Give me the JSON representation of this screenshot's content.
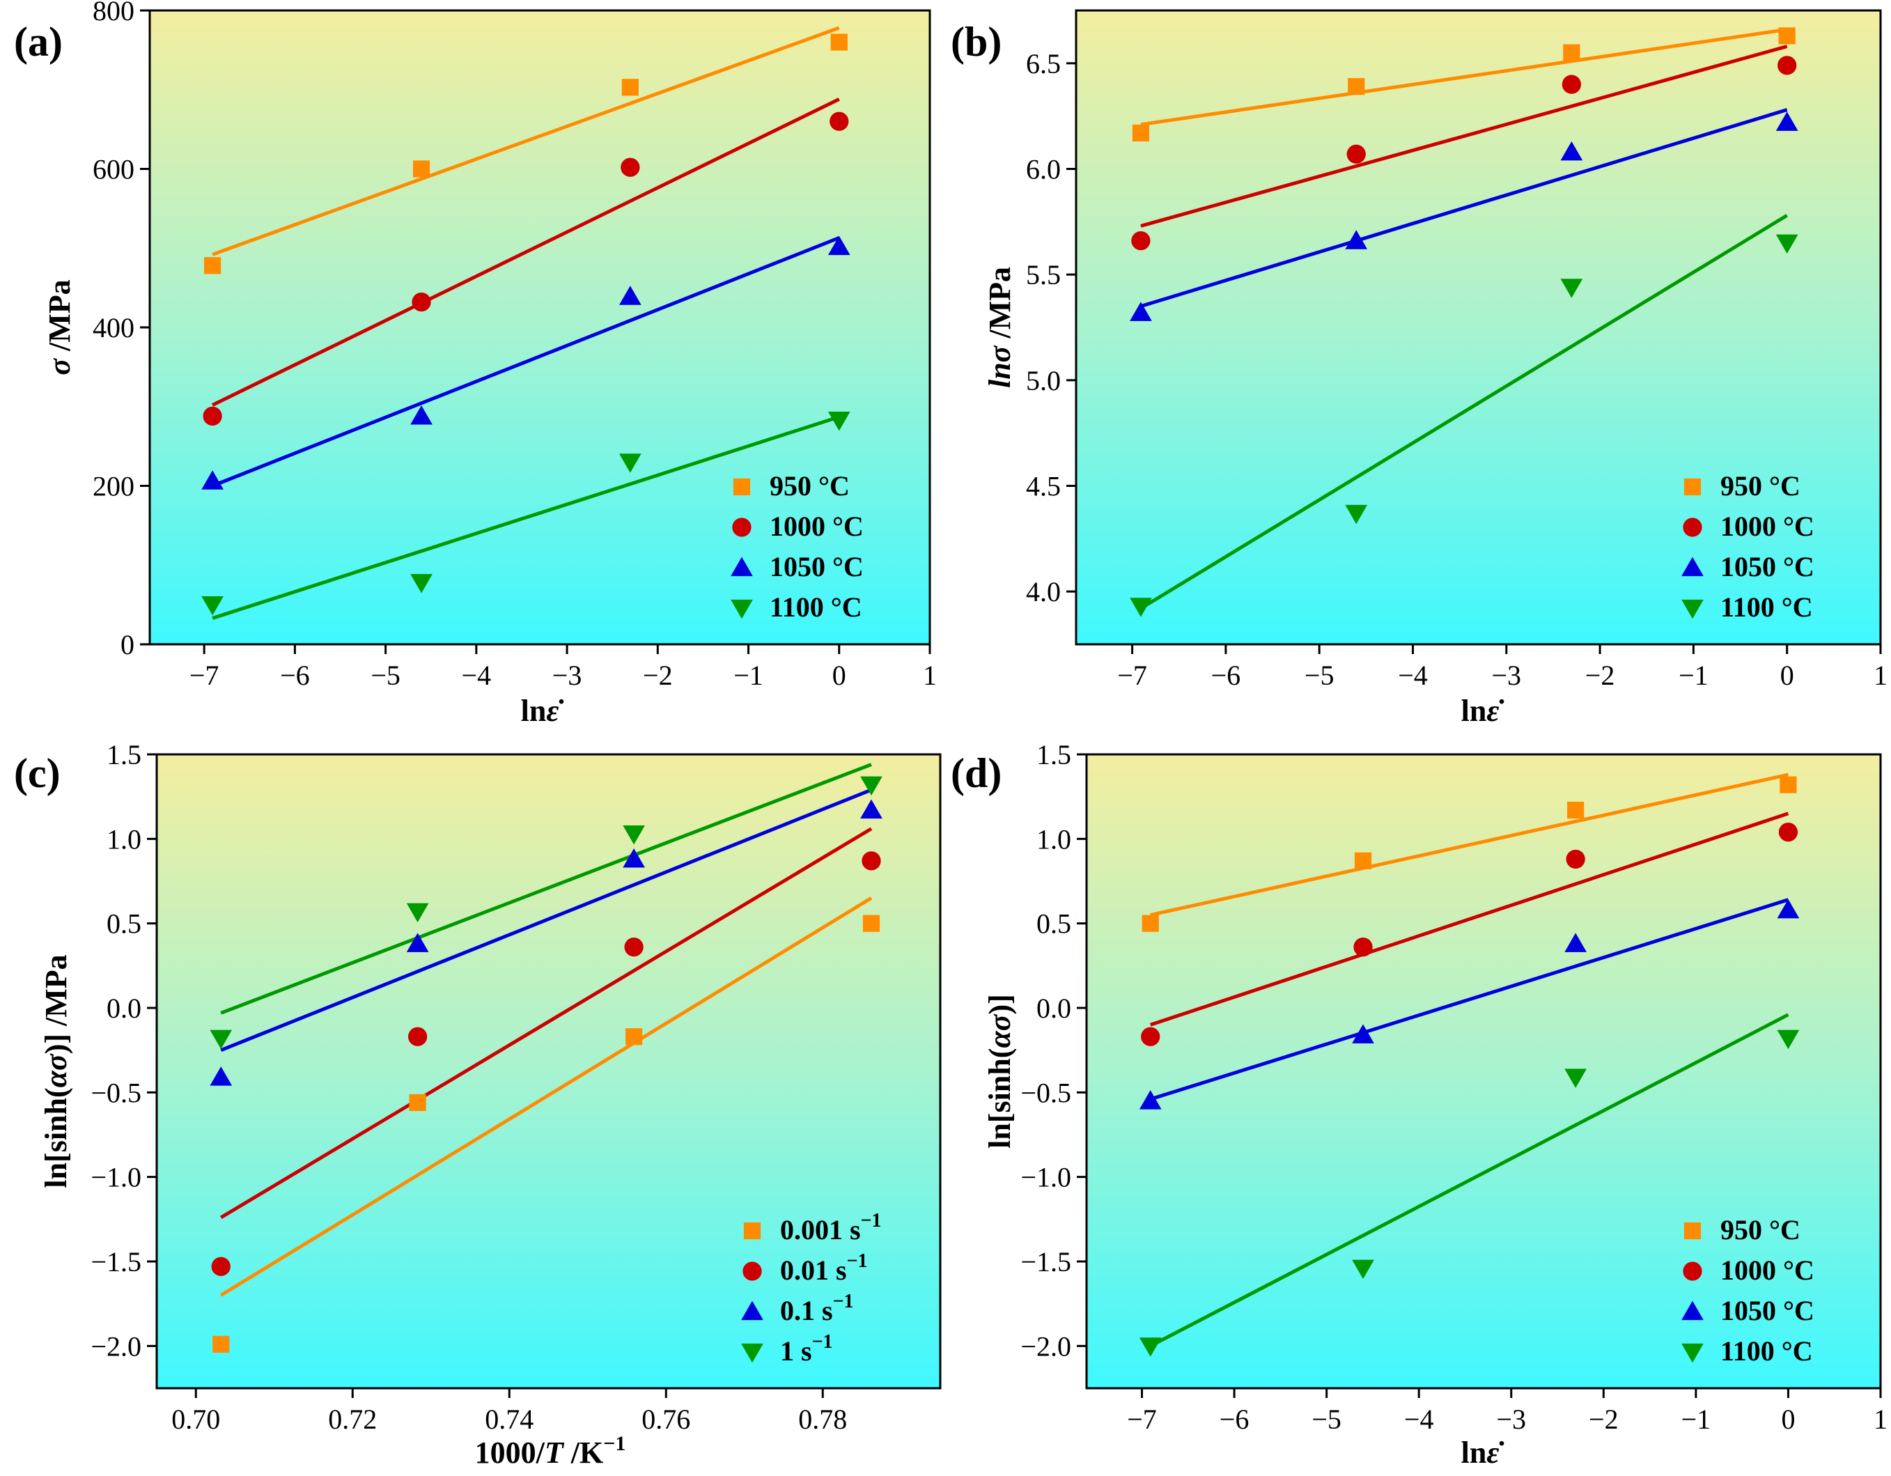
{
  "figure": {
    "colors": {
      "orange": "#FF8C00",
      "red": "#CC0000",
      "blue": "#0000DD",
      "green": "#009900",
      "bg_top": "#F3EEA0",
      "bg_bottom": "#3FF8FF"
    }
  },
  "chart_data": [
    {
      "id": "a",
      "tag": "(a)",
      "type": "scatter",
      "xlabel_main": "ln",
      "xlabel_symbol": "ε̇",
      "ylabel_main": "/MPa",
      "ylabel_symbol": "σ",
      "xlim": [
        -7.6,
        1
      ],
      "ylim": [
        0,
        800
      ],
      "xticks": [
        -7,
        -6,
        -5,
        -4,
        -3,
        -2,
        -1,
        0,
        1
      ],
      "xtick_labels": [
        "−7",
        "−6",
        "−5",
        "−4",
        "−3",
        "−2",
        "−1",
        "0",
        "1"
      ],
      "yticks": [
        0,
        200,
        400,
        600,
        800
      ],
      "ytick_labels": [
        "0",
        "200",
        "400",
        "600",
        "800"
      ],
      "legend_position": "bottom-right",
      "series": [
        {
          "name": "950 °C",
          "color": "orange",
          "marker": "square",
          "x": [
            -6.908,
            -4.605,
            -2.303,
            0
          ],
          "y": [
            478,
            600,
            703,
            760
          ],
          "fit": [
            [
              -6.908,
              492
            ],
            [
              0,
              778
            ]
          ]
        },
        {
          "name": "1000 °C",
          "color": "red",
          "marker": "circle",
          "x": [
            -6.908,
            -4.605,
            -2.303,
            0
          ],
          "y": [
            288,
            432,
            602,
            660
          ],
          "fit": [
            [
              -6.908,
              302
            ],
            [
              0,
              688
            ]
          ]
        },
        {
          "name": "1050 °C",
          "color": "blue",
          "marker": "triangle-up",
          "x": [
            -6.908,
            -4.605,
            -2.303,
            0
          ],
          "y": [
            206,
            288,
            439,
            502
          ],
          "fit": [
            [
              -6.908,
              200
            ],
            [
              0,
              513
            ]
          ]
        },
        {
          "name": "1100 °C",
          "color": "green",
          "marker": "triangle-down",
          "x": [
            -6.908,
            -4.605,
            -2.303,
            0
          ],
          "y": [
            50,
            78,
            230,
            283
          ],
          "fit": [
            [
              -6.908,
              33
            ],
            [
              0,
              287
            ]
          ]
        }
      ]
    },
    {
      "id": "b",
      "tag": "(b)",
      "type": "scatter",
      "xlabel_main": "ln",
      "xlabel_symbol": "ε̇",
      "ylabel_main": "/MPa",
      "ylabel_symbol": "lnσ",
      "xlim": [
        -7.6,
        1
      ],
      "ylim": [
        3.75,
        6.75
      ],
      "xticks": [
        -7,
        -6,
        -5,
        -4,
        -3,
        -2,
        -1,
        0,
        1
      ],
      "xtick_labels": [
        "−7",
        "−6",
        "−5",
        "−4",
        "−3",
        "−2",
        "−1",
        "0",
        "1"
      ],
      "yticks": [
        4.0,
        4.5,
        5.0,
        5.5,
        6.0,
        6.5
      ],
      "ytick_labels": [
        "4.0",
        "4.5",
        "5.0",
        "5.5",
        "6.0",
        "6.5"
      ],
      "legend_position": "bottom-right",
      "series": [
        {
          "name": "950 °C",
          "color": "orange",
          "marker": "square",
          "x": [
            -6.908,
            -4.605,
            -2.303,
            0
          ],
          "y": [
            6.17,
            6.39,
            6.55,
            6.63
          ],
          "fit": [
            [
              -6.908,
              6.21
            ],
            [
              0,
              6.66
            ]
          ]
        },
        {
          "name": "1000 °C",
          "color": "red",
          "marker": "circle",
          "x": [
            -6.908,
            -4.605,
            -2.303,
            0
          ],
          "y": [
            5.66,
            6.07,
            6.4,
            6.49
          ],
          "fit": [
            [
              -6.908,
              5.73
            ],
            [
              0,
              6.58
            ]
          ]
        },
        {
          "name": "1050 °C",
          "color": "blue",
          "marker": "triangle-up",
          "x": [
            -6.908,
            -4.605,
            -2.303,
            0
          ],
          "y": [
            5.32,
            5.66,
            6.08,
            6.22
          ],
          "fit": [
            [
              -6.908,
              5.35
            ],
            [
              0,
              6.28
            ]
          ]
        },
        {
          "name": "1100 °C",
          "color": "green",
          "marker": "triangle-down",
          "x": [
            -6.908,
            -4.605,
            -2.303,
            0
          ],
          "y": [
            3.93,
            4.37,
            5.44,
            5.65
          ],
          "fit": [
            [
              -6.908,
              3.92
            ],
            [
              0,
              5.78
            ]
          ]
        }
      ]
    },
    {
      "id": "c",
      "tag": "(c)",
      "type": "scatter",
      "xlabel_main": "1000/",
      "xlabel_symbol": "T",
      "xlabel_suffix": " /K",
      "xlabel_sup": "−1",
      "ylabel_main": "ln[sinh(",
      "ylabel_symbol": "ασ",
      "ylabel_suffix": ")] /MPa",
      "xlim": [
        0.695,
        0.795
      ],
      "ylim": [
        -2.25,
        1.5
      ],
      "xticks": [
        0.7,
        0.72,
        0.74,
        0.76,
        0.78
      ],
      "xtick_labels": [
        "0.70",
        "0.72",
        "0.74",
        "0.76",
        "0.78"
      ],
      "yticks": [
        -2.0,
        -1.5,
        -1.0,
        -0.5,
        0.0,
        0.5,
        1.0,
        1.5
      ],
      "ytick_labels": [
        "−2.0",
        "−1.5",
        "−1.0",
        "−0.5",
        "0.0",
        "0.5",
        "1.0",
        "1.5"
      ],
      "legend_position": "bottom-right",
      "series": [
        {
          "name": "0.001 s",
          "name_sup": "−1",
          "color": "orange",
          "marker": "square",
          "x": [
            0.7032,
            0.7283,
            0.7559,
            0.7862
          ],
          "y": [
            -1.99,
            -0.56,
            -0.17,
            0.5
          ],
          "fit": [
            [
              0.7032,
              -1.7
            ],
            [
              0.7862,
              0.65
            ]
          ]
        },
        {
          "name": "0.01 s",
          "name_sup": "−1",
          "color": "red",
          "marker": "circle",
          "x": [
            0.7032,
            0.7283,
            0.7559,
            0.7862
          ],
          "y": [
            -1.53,
            -0.17,
            0.36,
            0.87
          ],
          "fit": [
            [
              0.7032,
              -1.24
            ],
            [
              0.7862,
              1.06
            ]
          ]
        },
        {
          "name": "0.1 s",
          "name_sup": "−1",
          "color": "blue",
          "marker": "triangle-up",
          "x": [
            0.7032,
            0.7283,
            0.7559,
            0.7862
          ],
          "y": [
            -0.41,
            0.38,
            0.88,
            1.17
          ],
          "fit": [
            [
              0.7032,
              -0.25
            ],
            [
              0.7862,
              1.29
            ]
          ]
        },
        {
          "name": "1 s",
          "name_sup": "−1",
          "color": "green",
          "marker": "triangle-down",
          "x": [
            0.7032,
            0.7283,
            0.7559,
            0.7862
          ],
          "y": [
            -0.18,
            0.57,
            1.03,
            1.32
          ],
          "fit": [
            [
              0.7032,
              -0.03
            ],
            [
              0.7862,
              1.44
            ]
          ]
        }
      ]
    },
    {
      "id": "d",
      "tag": "(d)",
      "type": "scatter",
      "xlabel_main": "ln",
      "xlabel_symbol": "ε̇",
      "ylabel_main": "ln[sinh(",
      "ylabel_symbol": "ασ",
      "ylabel_suffix": ")]",
      "xlim": [
        -7.6,
        1
      ],
      "ylim": [
        -2.25,
        1.5
      ],
      "xticks": [
        -7,
        -6,
        -5,
        -4,
        -3,
        -2,
        -1,
        0,
        1
      ],
      "xtick_labels": [
        "−7",
        "−6",
        "−5",
        "−4",
        "−3",
        "−2",
        "−1",
        "0",
        "1"
      ],
      "yticks": [
        -2.0,
        -1.5,
        -1.0,
        -0.5,
        0.0,
        0.5,
        1.0,
        1.5
      ],
      "ytick_labels": [
        "−2.0",
        "−1.5",
        "−1.0",
        "−0.5",
        "0.0",
        "0.5",
        "1.0",
        "1.5"
      ],
      "legend_position": "bottom-right",
      "series": [
        {
          "name": "950 °C",
          "color": "orange",
          "marker": "square",
          "x": [
            -6.908,
            -4.605,
            -2.303,
            0
          ],
          "y": [
            0.5,
            0.87,
            1.17,
            1.32
          ],
          "fit": [
            [
              -6.908,
              0.55
            ],
            [
              0,
              1.38
            ]
          ]
        },
        {
          "name": "1000 °C",
          "color": "red",
          "marker": "circle",
          "x": [
            -6.908,
            -4.605,
            -2.303,
            0
          ],
          "y": [
            -0.17,
            0.36,
            0.88,
            1.04
          ],
          "fit": [
            [
              -6.908,
              -0.1
            ],
            [
              0,
              1.15
            ]
          ]
        },
        {
          "name": "1050 °C",
          "color": "blue",
          "marker": "triangle-up",
          "x": [
            -6.908,
            -4.605,
            -2.303,
            0
          ],
          "y": [
            -0.55,
            -0.16,
            0.38,
            0.58
          ],
          "fit": [
            [
              -6.908,
              -0.54
            ],
            [
              0,
              0.64
            ]
          ]
        },
        {
          "name": "1100 °C",
          "color": "green",
          "marker": "triangle-down",
          "x": [
            -6.908,
            -4.605,
            -2.303,
            0
          ],
          "y": [
            -2.0,
            -1.54,
            -0.41,
            -0.18
          ],
          "fit": [
            [
              -6.908,
              -2.0
            ],
            [
              0,
              -0.04
            ]
          ]
        }
      ]
    }
  ]
}
